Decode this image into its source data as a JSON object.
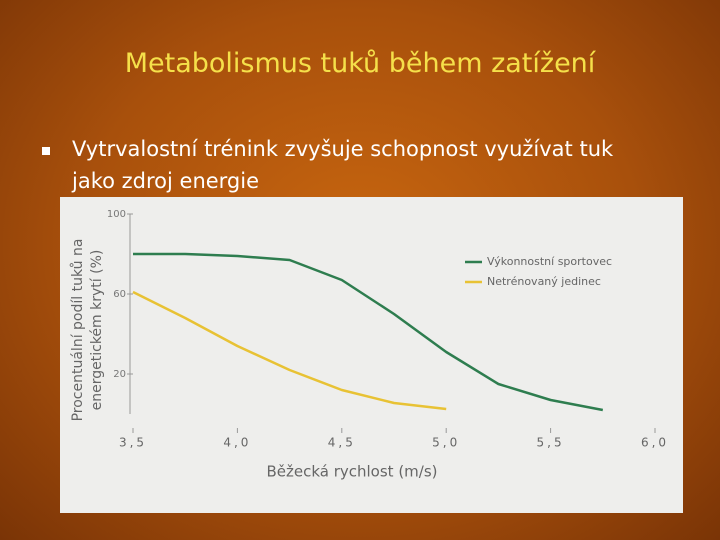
{
  "slide": {
    "title": "Metabolismus tuků během zatížení",
    "bullet": "Vytrvalostní trénink zvyšuje schopnost využívat tuk  jako zdroj energie"
  },
  "chart_data": {
    "type": "line",
    "ylabel": [
      "Procentuální podíl tuků na",
      "energetickém krytí (%)"
    ],
    "xlabel": "Běžecká rychlost (m/s)",
    "x": [
      3.5,
      3.75,
      4.0,
      4.25,
      4.5,
      4.75,
      5.0,
      5.25,
      5.5,
      5.75
    ],
    "series": [
      {
        "name": "Výkonnostní sportovec",
        "color": "#2e7d4f",
        "values": [
          80,
          80,
          79,
          77,
          67,
          50,
          31,
          15,
          7,
          2
        ]
      },
      {
        "name": "Netrénovaný jedinec",
        "color": "#e8c234",
        "values": [
          61,
          48,
          34,
          22,
          12,
          5.5,
          2.5,
          null,
          null,
          null
        ]
      }
    ],
    "xlim": [
      3.5,
      6.0
    ],
    "xticks": [
      {
        "value": 3.5,
        "label": "3,5"
      },
      {
        "value": 4.0,
        "label": "4,0"
      },
      {
        "value": 4.5,
        "label": "4,5"
      },
      {
        "value": 5.0,
        "label": "5,0"
      },
      {
        "value": 5.5,
        "label": "5,5"
      },
      {
        "value": 6.0,
        "label": "6,0"
      }
    ],
    "ylim": [
      0,
      100
    ],
    "yticks": [
      20,
      60,
      100
    ],
    "grid": false,
    "legend": "top-right"
  }
}
